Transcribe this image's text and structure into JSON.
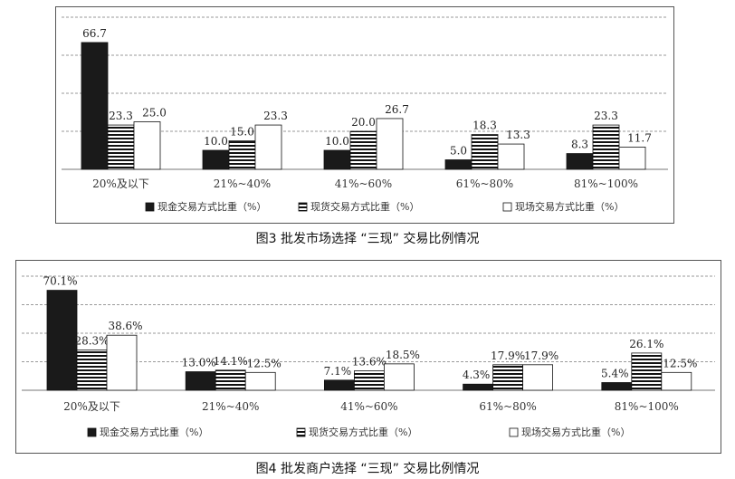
{
  "chart_data": [
    {
      "type": "bar",
      "caption": "图3  批发市场选择 “三现” 交易比例情况",
      "categories": [
        "20%及以下",
        "21%~40%",
        "41%~60%",
        "61%~80%",
        "81%~100%"
      ],
      "series": [
        {
          "name": "现金交易方式比重（%）",
          "values": [
            66.7,
            10.0,
            10.0,
            5.0,
            8.3
          ],
          "labels": [
            "66.7",
            "10.0",
            "10.0",
            "5.0",
            "8.3"
          ],
          "pattern": "solid"
        },
        {
          "name": "现货交易方式比重（%）",
          "values": [
            23.3,
            15.0,
            20.0,
            18.3,
            23.3
          ],
          "labels": [
            "23.3",
            "15.0",
            "20.0",
            "18.3",
            "23.3"
          ],
          "pattern": "stripes"
        },
        {
          "name": "现场交易方式比重（%）",
          "values": [
            25.0,
            23.3,
            26.7,
            13.3,
            11.7
          ],
          "labels": [
            "25.0",
            "23.3",
            "26.7",
            "13.3",
            "11.7"
          ],
          "pattern": "white"
        }
      ],
      "ylim": [
        0,
        80
      ],
      "grid": true,
      "legend": "bottom"
    },
    {
      "type": "bar",
      "caption": "图4  批发商户选择 “三现” 交易比例情况",
      "categories": [
        "20%及以下",
        "21%~40%",
        "41%~60%",
        "61%~80%",
        "81%~100%"
      ],
      "series": [
        {
          "name": "现金交易方式比重（%）",
          "values": [
            70.1,
            13.0,
            7.1,
            4.3,
            5.4
          ],
          "labels": [
            "70.1%",
            "13.0%",
            "7.1%",
            "4.3%",
            "5.4%"
          ],
          "pattern": "solid"
        },
        {
          "name": "现货交易方式比重（%）",
          "values": [
            28.3,
            14.1,
            13.6,
            17.9,
            26.1
          ],
          "labels": [
            "28.3%",
            "14.1%",
            "13.6%",
            "17.9%",
            "26.1%"
          ],
          "pattern": "stripes"
        },
        {
          "name": "现场交易方式比重（%）",
          "values": [
            38.6,
            12.5,
            18.5,
            17.9,
            12.5
          ],
          "labels": [
            "38.6%",
            "12.5%",
            "18.5%",
            "17.9%",
            "12.5%"
          ],
          "pattern": "white"
        }
      ],
      "ylim": [
        0,
        80
      ],
      "grid": true,
      "legend": "bottom"
    }
  ]
}
